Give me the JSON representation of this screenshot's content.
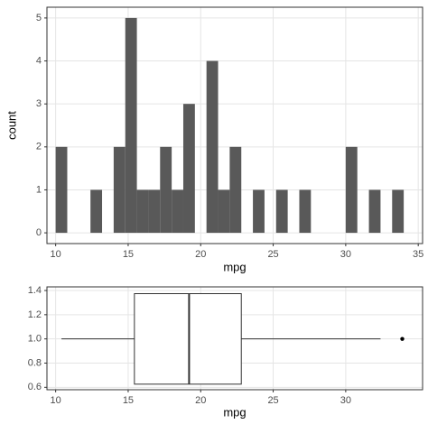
{
  "chart_data": [
    {
      "type": "histogram",
      "x_label": "mpg",
      "y_label": "count",
      "color": "#595959",
      "grid": true,
      "bins": [
        10.0,
        10.8,
        11.6,
        12.4,
        13.2,
        14.0,
        14.8,
        15.6,
        16.4,
        17.2,
        18.0,
        18.8,
        19.6,
        20.4,
        21.2,
        22.0,
        22.8,
        23.6,
        24.4,
        25.2,
        26.0,
        26.8,
        27.6,
        28.4,
        29.2,
        30.0,
        30.8,
        31.6,
        32.4,
        33.2,
        34.0
      ],
      "counts": [
        2,
        0,
        0,
        1,
        0,
        2,
        5,
        1,
        1,
        2,
        1,
        3,
        0,
        4,
        1,
        2,
        0,
        1,
        0,
        1,
        0,
        1,
        0,
        0,
        0,
        2,
        0,
        1,
        0,
        1
      ],
      "xlim": [
        9.4,
        35.3
      ],
      "xticks": [
        10,
        15,
        20,
        25,
        30,
        35
      ],
      "ylim": [
        -0.25,
        5.25
      ],
      "yticks": [
        0,
        1,
        2,
        3,
        4,
        5
      ]
    },
    {
      "type": "boxplot",
      "x_label": "mpg",
      "grid": true,
      "y": 1,
      "min": 10.4,
      "q1": 15.43,
      "median": 19.2,
      "q3": 22.8,
      "max": 32.4,
      "outliers": [
        33.9
      ],
      "xlim": [
        9.4,
        35.3
      ],
      "xticks": [
        10,
        15,
        20,
        25,
        30
      ],
      "ylim": [
        0.58,
        1.43
      ],
      "yticks": [
        {
          "value": 0.6,
          "label": "0.6"
        },
        {
          "value": 0.8,
          "label": "0.8"
        },
        {
          "value": 1,
          "label": "1.0"
        },
        {
          "value": 1.2,
          "label": "1.2"
        },
        {
          "value": 1.4,
          "label": "1.4"
        }
      ]
    }
  ]
}
